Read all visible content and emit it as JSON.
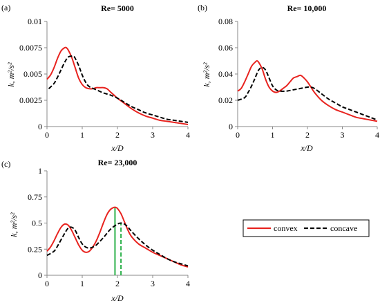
{
  "chart_data": [
    {
      "type": "line",
      "panel_label": "(a)",
      "title": "Re= 5000",
      "xlabel": "x/D",
      "ylabel": "k, m²/s²",
      "xlim": [
        0,
        4
      ],
      "ylim": [
        0,
        0.01
      ],
      "xticks": [
        0,
        1,
        2,
        3,
        4
      ],
      "yticks": [
        0,
        0.0025,
        0.005,
        0.0075,
        0.01
      ],
      "xtick_labels": [
        "0",
        "1",
        "2",
        "3",
        "4"
      ],
      "ytick_labels": [
        "0",
        "0.0025",
        "0.005",
        "0.0075",
        "0.01"
      ],
      "grid": false,
      "series": [
        {
          "name": "convex",
          "color": "#e8231f",
          "style": "solid",
          "x": [
            0,
            0.1,
            0.2,
            0.3,
            0.4,
            0.5,
            0.55,
            0.6,
            0.7,
            0.8,
            0.9,
            1.0,
            1.1,
            1.2,
            1.3,
            1.4,
            1.5,
            1.6,
            1.7,
            1.8,
            1.9,
            2.0,
            2.2,
            2.4,
            2.6,
            2.8,
            3.0,
            3.2,
            3.4,
            3.6,
            3.8,
            4.0
          ],
          "y": [
            0.0045,
            0.0049,
            0.0056,
            0.0065,
            0.0072,
            0.0075,
            0.0075,
            0.0073,
            0.0066,
            0.0056,
            0.0046,
            0.004,
            0.0037,
            0.0036,
            0.0036,
            0.0037,
            0.0037,
            0.0037,
            0.0036,
            0.0033,
            0.003,
            0.0027,
            0.0022,
            0.0017,
            0.0013,
            0.001,
            0.0008,
            0.0006,
            0.0005,
            0.0004,
            0.0003,
            0.0002
          ]
        },
        {
          "name": "concave",
          "color": "#000000",
          "style": "dashed",
          "x": [
            0.05,
            0.2,
            0.3,
            0.4,
            0.5,
            0.6,
            0.7,
            0.75,
            0.8,
            0.9,
            1.0,
            1.1,
            1.2,
            1.4,
            1.6,
            1.8,
            2.0,
            2.2,
            2.4,
            2.6,
            2.8,
            3.0,
            3.2,
            3.4,
            3.6,
            3.8,
            4.0
          ],
          "y": [
            0.0036,
            0.0041,
            0.0047,
            0.0054,
            0.0061,
            0.0066,
            0.0067,
            0.0067,
            0.0065,
            0.0058,
            0.0049,
            0.0042,
            0.0038,
            0.0035,
            0.0032,
            0.003,
            0.0027,
            0.0023,
            0.0019,
            0.0016,
            0.0013,
            0.0011,
            0.0009,
            0.0007,
            0.0006,
            0.0005,
            0.0004
          ]
        }
      ]
    },
    {
      "type": "line",
      "panel_label": "(b)",
      "title": "Re= 10,000",
      "xlabel": "x/D",
      "ylabel": "k, m²/s²",
      "xlim": [
        0,
        4
      ],
      "ylim": [
        0,
        0.08
      ],
      "xticks": [
        0,
        1,
        2,
        3,
        4
      ],
      "yticks": [
        0,
        0.02,
        0.04,
        0.06,
        0.08
      ],
      "xtick_labels": [
        "0",
        "1",
        "2",
        "3",
        "4"
      ],
      "ytick_labels": [
        "0",
        "0.02",
        "0.04",
        "0.06",
        "0.08"
      ],
      "grid": false,
      "series": [
        {
          "name": "convex",
          "color": "#e8231f",
          "style": "solid",
          "x": [
            0,
            0.1,
            0.2,
            0.3,
            0.4,
            0.5,
            0.55,
            0.6,
            0.7,
            0.8,
            0.9,
            1.0,
            1.1,
            1.2,
            1.3,
            1.4,
            1.5,
            1.6,
            1.7,
            1.8,
            1.9,
            2.0,
            2.1,
            2.2,
            2.4,
            2.6,
            2.8,
            3.0,
            3.2,
            3.4,
            3.6,
            3.8,
            4.0
          ],
          "y": [
            0.027,
            0.029,
            0.034,
            0.04,
            0.046,
            0.049,
            0.05,
            0.049,
            0.044,
            0.036,
            0.03,
            0.027,
            0.026,
            0.027,
            0.029,
            0.031,
            0.034,
            0.037,
            0.038,
            0.039,
            0.037,
            0.034,
            0.03,
            0.026,
            0.02,
            0.016,
            0.013,
            0.011,
            0.009,
            0.007,
            0.006,
            0.005,
            0.004
          ]
        },
        {
          "name": "concave",
          "color": "#000000",
          "style": "dashed",
          "x": [
            0,
            0.2,
            0.3,
            0.4,
            0.5,
            0.6,
            0.7,
            0.8,
            0.9,
            1.0,
            1.1,
            1.2,
            1.4,
            1.6,
            1.8,
            2.0,
            2.1,
            2.2,
            2.4,
            2.6,
            2.8,
            3.0,
            3.2,
            3.4,
            3.6,
            3.8,
            4.0
          ],
          "y": [
            0.02,
            0.022,
            0.026,
            0.031,
            0.037,
            0.043,
            0.045,
            0.043,
            0.037,
            0.031,
            0.028,
            0.027,
            0.027,
            0.028,
            0.029,
            0.03,
            0.03,
            0.029,
            0.025,
            0.021,
            0.018,
            0.015,
            0.013,
            0.011,
            0.009,
            0.007,
            0.005
          ]
        }
      ]
    },
    {
      "type": "line",
      "panel_label": "(c)",
      "title": "Re= 23,000",
      "xlabel": "x/D",
      "ylabel": "k, m²/s²",
      "xlim": [
        0,
        4
      ],
      "ylim": [
        0,
        1
      ],
      "xticks": [
        0,
        1,
        2,
        3,
        4
      ],
      "yticks": [
        0,
        0.25,
        0.5,
        0.75,
        1
      ],
      "xtick_labels": [
        "0",
        "1",
        "2",
        "3",
        "4"
      ],
      "ytick_labels": [
        "0",
        "0.25",
        "0.5",
        "0.75",
        "1"
      ],
      "grid": false,
      "series": [
        {
          "name": "convex",
          "color": "#e8231f",
          "style": "solid",
          "x": [
            0,
            0.1,
            0.2,
            0.3,
            0.4,
            0.5,
            0.6,
            0.7,
            0.8,
            0.9,
            1.0,
            1.1,
            1.2,
            1.3,
            1.4,
            1.5,
            1.6,
            1.7,
            1.8,
            1.9,
            1.95,
            2.0,
            2.1,
            2.2,
            2.3,
            2.4,
            2.6,
            2.8,
            3.0,
            3.2,
            3.4,
            3.6,
            3.8,
            4.0
          ],
          "y": [
            0.23,
            0.27,
            0.33,
            0.4,
            0.46,
            0.49,
            0.48,
            0.43,
            0.36,
            0.29,
            0.24,
            0.22,
            0.23,
            0.27,
            0.33,
            0.41,
            0.5,
            0.58,
            0.63,
            0.65,
            0.65,
            0.64,
            0.59,
            0.51,
            0.43,
            0.37,
            0.3,
            0.26,
            0.22,
            0.19,
            0.16,
            0.13,
            0.1,
            0.08
          ]
        },
        {
          "name": "concave",
          "color": "#000000",
          "style": "dashed",
          "x": [
            0,
            0.2,
            0.3,
            0.4,
            0.5,
            0.6,
            0.7,
            0.8,
            0.9,
            1.0,
            1.1,
            1.2,
            1.3,
            1.4,
            1.6,
            1.8,
            2.0,
            2.1,
            2.2,
            2.3,
            2.4,
            2.6,
            2.8,
            3.0,
            3.2,
            3.4,
            3.6,
            3.8,
            4.0
          ],
          "y": [
            0.19,
            0.23,
            0.28,
            0.34,
            0.4,
            0.45,
            0.46,
            0.43,
            0.36,
            0.3,
            0.27,
            0.26,
            0.27,
            0.29,
            0.36,
            0.44,
            0.49,
            0.5,
            0.49,
            0.46,
            0.42,
            0.35,
            0.29,
            0.24,
            0.2,
            0.16,
            0.13,
            0.11,
            0.09
          ]
        }
      ],
      "markers": [
        {
          "x": 1.93,
          "y": 0.65,
          "color": "#2bb14a",
          "style": "solid"
        },
        {
          "x": 2.1,
          "y": 0.5,
          "color": "#2bb14a",
          "style": "dashed"
        }
      ]
    }
  ],
  "legend": {
    "items": [
      {
        "label": "convex",
        "color": "#e8231f",
        "style": "solid"
      },
      {
        "label": "concave",
        "color": "#000000",
        "style": "dashed"
      }
    ]
  }
}
